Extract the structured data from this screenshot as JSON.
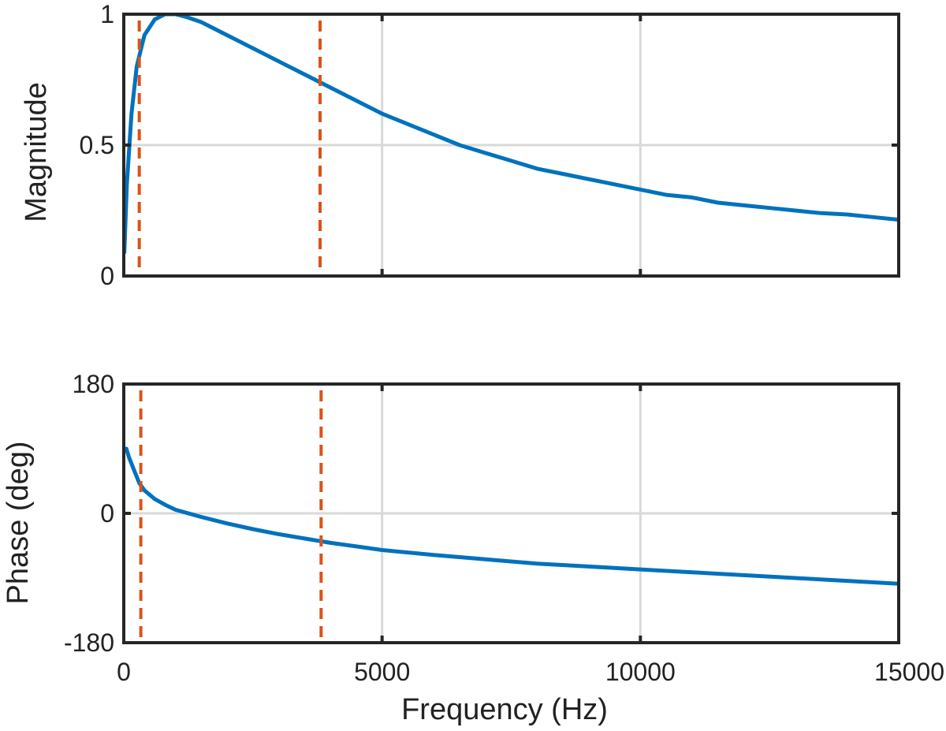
{
  "chart_data": [
    {
      "type": "line",
      "title": "",
      "xlabel": "",
      "ylabel": "Magnitude",
      "xlim": [
        0,
        15000
      ],
      "ylim": [
        0,
        1
      ],
      "xticks": [
        0,
        5000,
        10000,
        15000
      ],
      "yticks": [
        0,
        0.5,
        1
      ],
      "ytick_labels": [
        "0",
        "0.5",
        "1"
      ],
      "xtick_labels": [],
      "grid": true,
      "series": [
        {
          "color": "#0072BD",
          "x": [
            10,
            60,
            150,
            250,
            400,
            600,
            800,
            1000,
            1200,
            1500,
            2000,
            2500,
            3000,
            3500,
            4000,
            4500,
            5000,
            5500,
            6000,
            6500,
            7000,
            7500,
            8000,
            8500,
            9000,
            9500,
            10000,
            10500,
            11000,
            11500,
            12000,
            12500,
            13000,
            13500,
            14000,
            14500,
            15000
          ],
          "y": [
            0.09,
            0.35,
            0.62,
            0.8,
            0.92,
            0.98,
            1.0,
            1.0,
            0.99,
            0.97,
            0.92,
            0.87,
            0.82,
            0.77,
            0.72,
            0.67,
            0.62,
            0.58,
            0.54,
            0.5,
            0.47,
            0.44,
            0.41,
            0.39,
            0.37,
            0.35,
            0.33,
            0.31,
            0.3,
            0.28,
            0.27,
            0.26,
            0.25,
            0.24,
            0.235,
            0.225,
            0.215
          ]
        }
      ],
      "vlines": {
        "x": [
          300,
          3800
        ],
        "color": "#D95319",
        "style": "dashed"
      }
    },
    {
      "type": "line",
      "title": "",
      "xlabel": "Frequency (Hz)",
      "ylabel": "Phase (deg)",
      "xlim": [
        0,
        15000
      ],
      "ylim": [
        -180,
        180
      ],
      "xticks": [
        0,
        5000,
        10000,
        15000
      ],
      "xtick_labels": [
        "0",
        "5000",
        "10000",
        "15000"
      ],
      "yticks": [
        -180,
        0,
        180
      ],
      "ytick_labels": [
        "-180",
        "0",
        "180"
      ],
      "grid": true,
      "series": [
        {
          "color": "#0072BD",
          "x": [
            50,
            100,
            200,
            300,
            400,
            600,
            800,
            1000,
            1500,
            2000,
            2500,
            3000,
            3500,
            4000,
            4500,
            5000,
            6000,
            7000,
            8000,
            9000,
            10000,
            11000,
            12000,
            13000,
            14000,
            15000
          ],
          "y": [
            90,
            78,
            60,
            42,
            32,
            20,
            12,
            5,
            -5,
            -14,
            -22,
            -29,
            -35,
            -41,
            -46,
            -51,
            -58,
            -64,
            -70,
            -74,
            -78,
            -82,
            -86,
            -90,
            -94,
            -98
          ]
        }
      ],
      "vlines": {
        "x": [
          330,
          3820
        ],
        "color": "#D95319",
        "style": "dashed"
      }
    }
  ]
}
